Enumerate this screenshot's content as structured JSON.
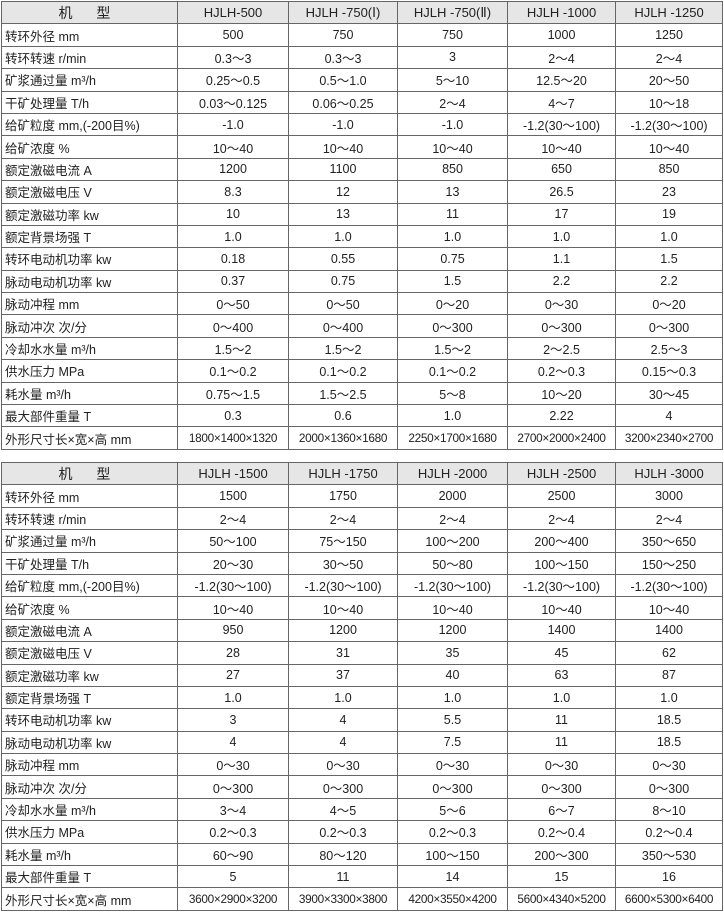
{
  "tables": [
    {
      "header": [
        "机 型",
        "HJLH-500",
        "HJLH -750(Ⅰ)",
        "HJLH -750(Ⅱ)",
        "HJLH -1000",
        "HJLH -1250"
      ],
      "rows": [
        [
          "转环外径 mm",
          "500",
          "750",
          "750",
          "1000",
          "1250"
        ],
        [
          "转环转速 r/min",
          "0.3～3",
          "0.3～3",
          "3",
          "2～4",
          "2～4"
        ],
        [
          "矿浆通过量 m³/h",
          "0.25～0.5",
          "0.5～1.0",
          "5～10",
          "12.5～20",
          "20～50"
        ],
        [
          "干矿处理量 T/h",
          "0.03～0.125",
          "0.06～0.25",
          "2～4",
          "4～7",
          "10～18"
        ],
        [
          "给矿粒度 mm,(-200目%)",
          "-1.0",
          "-1.0",
          "-1.0",
          "-1.2(30～100)",
          "-1.2(30～100)"
        ],
        [
          "给矿浓度 %",
          "10～40",
          "10～40",
          "10～40",
          "10～40",
          "10～40"
        ],
        [
          "额定激磁电流 A",
          "1200",
          "1100",
          "850",
          "650",
          "850"
        ],
        [
          "额定激磁电压 V",
          "8.3",
          "12",
          "13",
          "26.5",
          "23"
        ],
        [
          "额定激磁功率 kw",
          "10",
          "13",
          "11",
          "17",
          "19"
        ],
        [
          "额定背景场强 T",
          "1.0",
          "1.0",
          "1.0",
          "1.0",
          "1.0"
        ],
        [
          "转环电动机功率 kw",
          "0.18",
          "0.55",
          "0.75",
          "1.1",
          "1.5"
        ],
        [
          "脉动电动机功率 kw",
          "0.37",
          "0.75",
          "1.5",
          "2.2",
          "2.2"
        ],
        [
          "脉动冲程 mm",
          "0～50",
          "0～50",
          "0～20",
          "0～30",
          "0～20"
        ],
        [
          "脉动冲次 次/分",
          "0～400",
          "0～400",
          "0～300",
          "0～300",
          "0～300"
        ],
        [
          "冷却水水量 m³/h",
          "1.5～2",
          "1.5～2",
          "1.5～2",
          "2～2.5",
          "2.5～3"
        ],
        [
          "供水压力 MPa",
          "0.1～0.2",
          "0.1～0.2",
          "0.1～0.2",
          "0.2～0.3",
          "0.15～0.3"
        ],
        [
          "耗水量 m³/h",
          "0.75～1.5",
          "1.5～2.5",
          "5～8",
          "10～20",
          "30～45"
        ],
        [
          "最大部件重量 T",
          "0.3",
          "0.6",
          "1.0",
          "2.22",
          "4"
        ],
        [
          "外形尺寸长×宽×高 mm",
          "1800×1400×1320",
          "2000×1360×1680",
          "2250×1700×1680",
          "2700×2000×2400",
          "3200×2340×2700"
        ]
      ]
    },
    {
      "header": [
        "机 型",
        "HJLH -1500",
        "HJLH -1750",
        "HJLH -2000",
        "HJLH -2500",
        "HJLH -3000"
      ],
      "rows": [
        [
          "转环外径 mm",
          "1500",
          "1750",
          "2000",
          "2500",
          "3000"
        ],
        [
          "转环转速 r/min",
          "2～4",
          "2～4",
          "2～4",
          "2～4",
          "2～4"
        ],
        [
          "矿浆通过量 m³/h",
          "50～100",
          "75～150",
          "100～200",
          "200～400",
          "350～650"
        ],
        [
          "干矿处理量 T/h",
          "20～30",
          "30～50",
          "50～80",
          "100～150",
          "150～250"
        ],
        [
          "给矿粒度 mm,(-200目%)",
          "-1.2(30～100)",
          "-1.2(30～100)",
          "-1.2(30～100)",
          "-1.2(30～100)",
          "-1.2(30～100)"
        ],
        [
          "给矿浓度 %",
          "10～40",
          "10～40",
          "10～40",
          "10～40",
          "10～40"
        ],
        [
          "额定激磁电流 A",
          "950",
          "1200",
          "1200",
          "1400",
          "1400"
        ],
        [
          "额定激磁电压 V",
          "28",
          "31",
          "35",
          "45",
          "62"
        ],
        [
          "额定激磁功率 kw",
          "27",
          "37",
          "40",
          "63",
          "87"
        ],
        [
          "额定背景场强 T",
          "1.0",
          "1.0",
          "1.0",
          "1.0",
          "1.0"
        ],
        [
          "转环电动机功率 kw",
          "3",
          "4",
          "5.5",
          "11",
          "18.5"
        ],
        [
          "脉动电动机功率 kw",
          "4",
          "4",
          "7.5",
          "11",
          "18.5"
        ],
        [
          "脉动冲程 mm",
          "0～30",
          "0～30",
          "0～30",
          "0～30",
          "0～30"
        ],
        [
          "脉动冲次 次/分",
          "0～300",
          "0～300",
          "0～300",
          "0～300",
          "0～300"
        ],
        [
          "冷却水水量 m³/h",
          "3～4",
          "4～5",
          "5～6",
          "6～7",
          "8～10"
        ],
        [
          "供水压力 MPa",
          "0.2～0.3",
          "0.2～0.3",
          "0.2～0.3",
          "0.2～0.4",
          "0.2～0.4"
        ],
        [
          "耗水量 m³/h",
          "60～90",
          "80～120",
          "100～150",
          "200～300",
          "350～530"
        ],
        [
          "最大部件重量 T",
          "5",
          "11",
          "14",
          "15",
          "16"
        ],
        [
          "外形尺寸长×宽×高 mm",
          "3600×2900×3200",
          "3900×3300×3800",
          "4200×3550×4200",
          "5600×4340×5200",
          "6600×5300×6400"
        ]
      ]
    }
  ]
}
